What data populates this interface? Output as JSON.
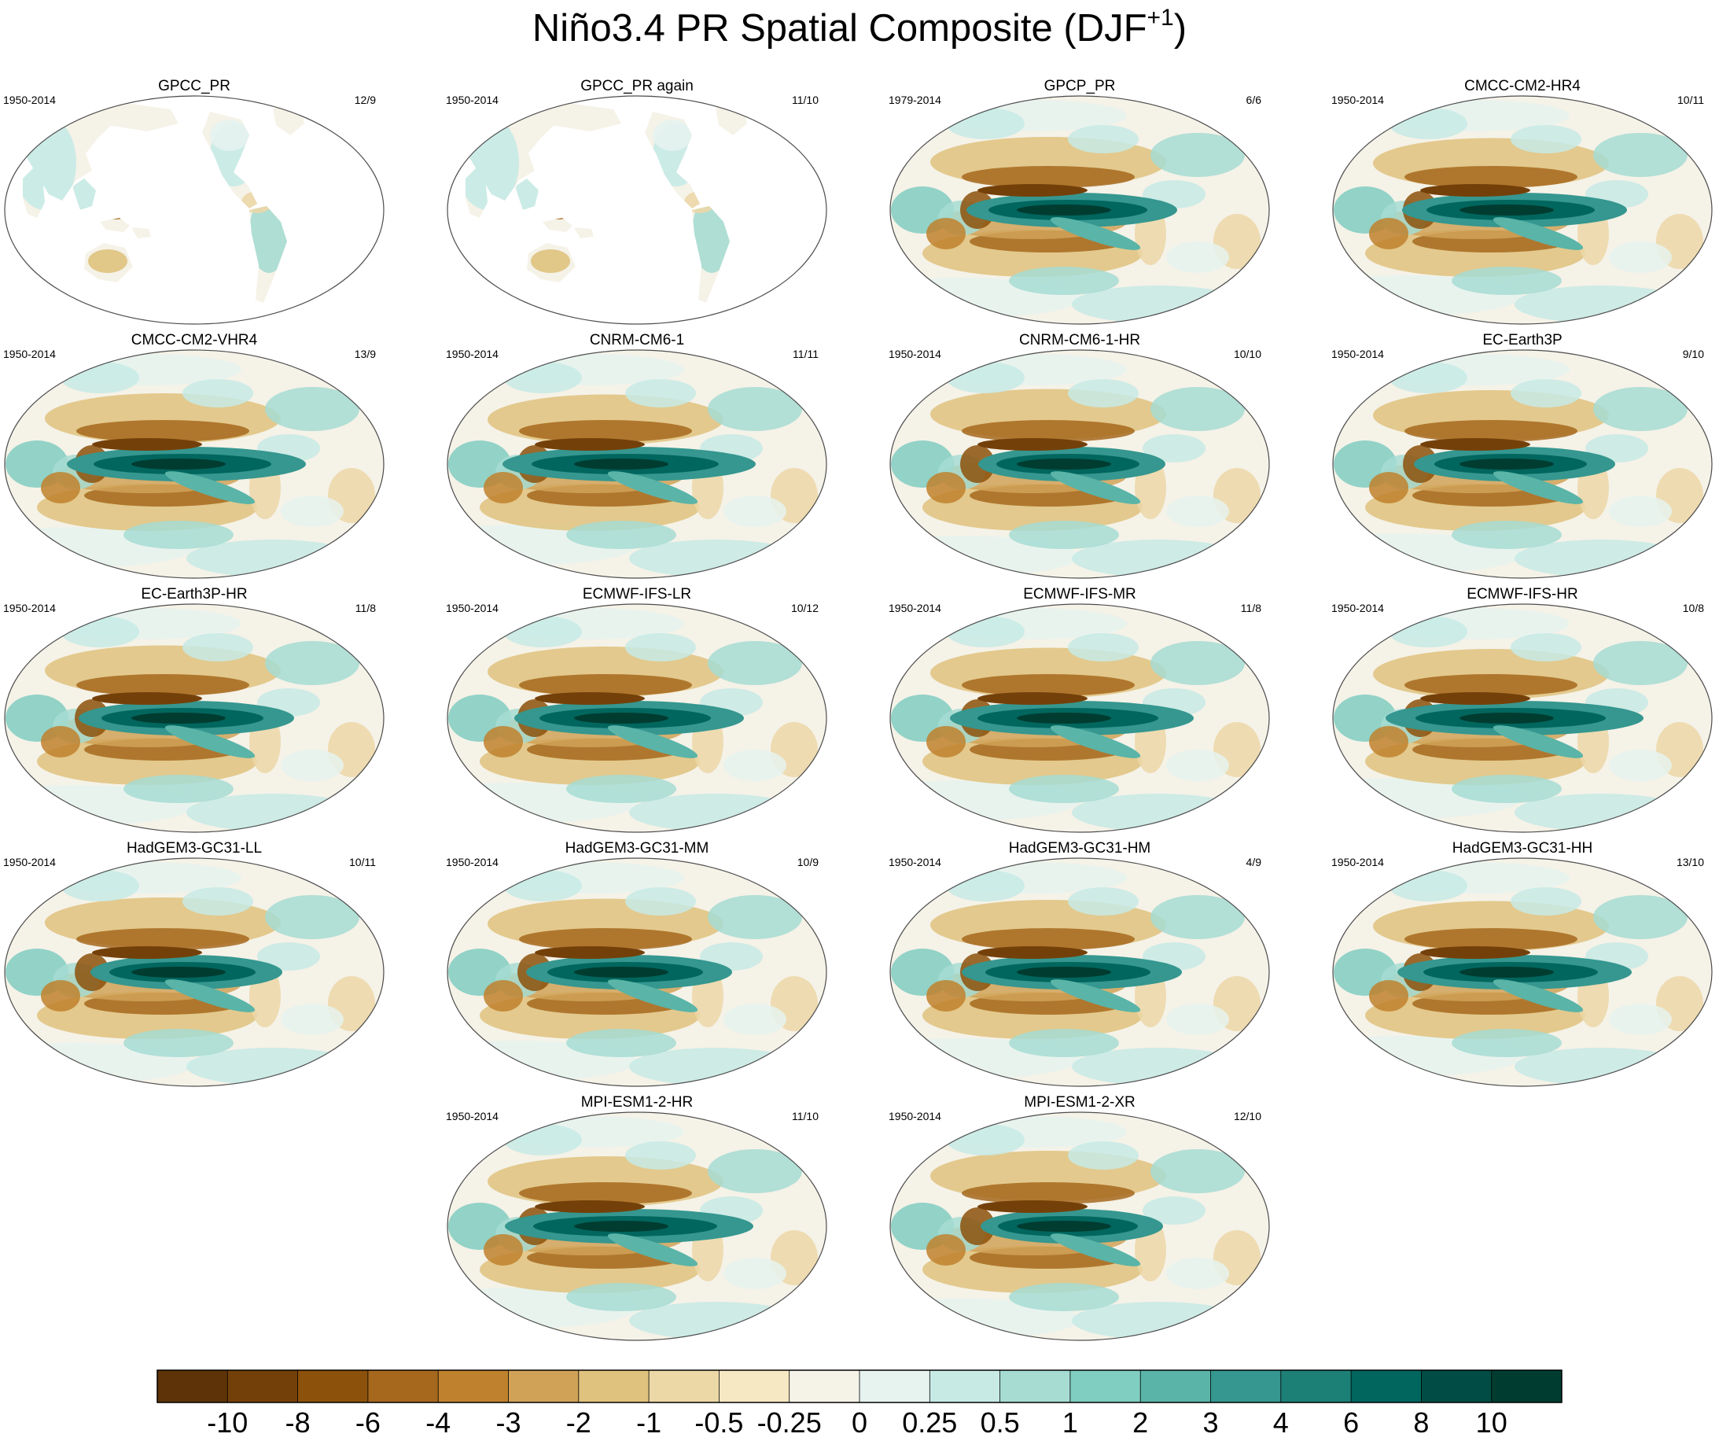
{
  "figure": {
    "title": "Niño3.4 PR Spatial Composite (DJF",
    "title_superscript": "+1",
    "title_close": ")"
  },
  "panels": [
    {
      "title": "GPCC_PR",
      "period": "1950-2014",
      "count": "12/9",
      "field": "land"
    },
    {
      "title": "GPCC_PR again",
      "period": "1950-2014",
      "count": "11/10",
      "field": "land"
    },
    {
      "title": "GPCP_PR",
      "period": "1979-2014",
      "count": "6/6",
      "field": "global"
    },
    {
      "title": "CMCC-CM2-HR4",
      "period": "1950-2014",
      "count": "10/11",
      "field": "global"
    },
    {
      "title": "CMCC-CM2-VHR4",
      "period": "1950-2014",
      "count": "13/9",
      "field": "global"
    },
    {
      "title": "CNRM-CM6-1",
      "period": "1950-2014",
      "count": "11/11",
      "field": "global"
    },
    {
      "title": "CNRM-CM6-1-HR",
      "period": "1950-2014",
      "count": "10/10",
      "field": "global"
    },
    {
      "title": "EC-Earth3P",
      "period": "1950-2014",
      "count": "9/10",
      "field": "global"
    },
    {
      "title": "EC-Earth3P-HR",
      "period": "1950-2014",
      "count": "11/8",
      "field": "global"
    },
    {
      "title": "ECMWF-IFS-LR",
      "period": "1950-2014",
      "count": "10/12",
      "field": "global"
    },
    {
      "title": "ECMWF-IFS-MR",
      "period": "1950-2014",
      "count": "11/8",
      "field": "global"
    },
    {
      "title": "ECMWF-IFS-HR",
      "period": "1950-2014",
      "count": "10/8",
      "field": "global"
    },
    {
      "title": "HadGEM3-GC31-LL",
      "period": "1950-2014",
      "count": "10/11",
      "field": "global"
    },
    {
      "title": "HadGEM3-GC31-MM",
      "period": "1950-2014",
      "count": "10/9",
      "field": "global"
    },
    {
      "title": "HadGEM3-GC31-HM",
      "period": "1950-2014",
      "count": "4/9",
      "field": "global"
    },
    {
      "title": "HadGEM3-GC31-HH",
      "period": "1950-2014",
      "count": "13/10",
      "field": "global"
    },
    {
      "title": "MPI-ESM1-2-HR",
      "period": "1950-2014",
      "count": "11/10",
      "field": "global"
    },
    {
      "title": "MPI-ESM1-2-XR",
      "period": "1950-2014",
      "count": "12/10",
      "field": "global"
    }
  ],
  "colorbar": {
    "colors": [
      "#5d3307",
      "#744009",
      "#8c510a",
      "#a6681d",
      "#bf812d",
      "#d0a257",
      "#dfc27d",
      "#ecd7a7",
      "#f6e8c3",
      "#f5f2e8",
      "#e6f3ef",
      "#c7eae5",
      "#a6dcd2",
      "#80cdc1",
      "#5ab4a8",
      "#35978f",
      "#1d8077",
      "#01665e",
      "#014d45",
      "#003c30"
    ],
    "labels": [
      "-10",
      "-8",
      "-6",
      "-4",
      "-3",
      "-2",
      "-1",
      "-0.5",
      "-0.25",
      "0",
      "0.25",
      "0.5",
      "1",
      "2",
      "3",
      "4",
      "6",
      "8",
      "10"
    ]
  }
}
